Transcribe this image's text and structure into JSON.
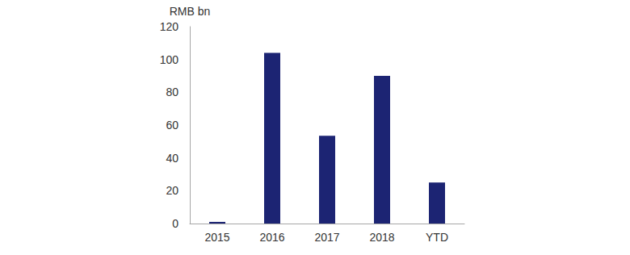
{
  "chart_data": {
    "type": "bar",
    "y_label": "RMB bn",
    "categories": [
      "2015",
      "2016",
      "2017",
      "2018",
      "YTD"
    ],
    "values": [
      1,
      104,
      53.5,
      90,
      25
    ],
    "color": "#1c2473",
    "ylim": [
      0,
      120
    ],
    "yticks": [
      0,
      20,
      40,
      60,
      80,
      100,
      120
    ],
    "grid": false
  }
}
